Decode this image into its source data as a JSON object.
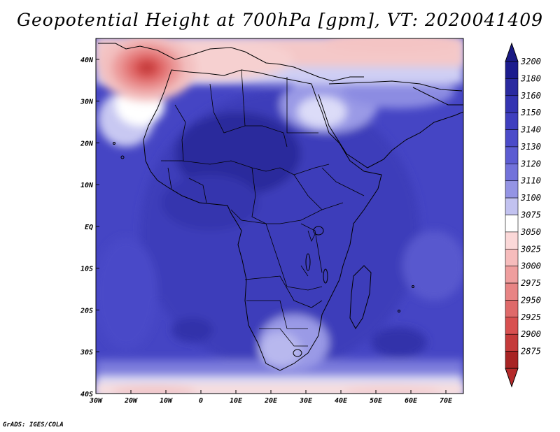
{
  "title": "Geopotential Height at 700hPa [gpm], VT: 2020041409",
  "credit": "GrADS: IGES/COLA",
  "map": {
    "lon_ticks": [
      "30W",
      "20W",
      "10W",
      "0",
      "10E",
      "20E",
      "30E",
      "40E",
      "50E",
      "60E",
      "70E"
    ],
    "lat_ticks": [
      "40N",
      "30N",
      "20N",
      "10N",
      "EQ",
      "10S",
      "20S",
      "30S",
      "40S"
    ],
    "lon_range": [
      -30,
      75
    ],
    "lat_range": [
      -40,
      45
    ]
  },
  "colorbar": {
    "levels": [
      "3200",
      "3180",
      "3160",
      "3150",
      "3140",
      "3130",
      "3120",
      "3110",
      "3100",
      "3075",
      "3050",
      "3025",
      "3000",
      "2975",
      "2950",
      "2925",
      "2900",
      "2875"
    ],
    "colors": [
      "#1c1c8e",
      "#2a2aa0",
      "#3434b2",
      "#3f3fbf",
      "#4b4bc9",
      "#5c5cd2",
      "#7272da",
      "#9494e4",
      "#c2c2f0",
      "#ffffff",
      "#fbd8d8",
      "#f6bcbc",
      "#ef9e9e",
      "#e88484",
      "#df6a6a",
      "#d85050",
      "#c53a3a",
      "#a82424"
    ],
    "top_color": "#1a1a84",
    "bottom_color": "#b52a2a"
  }
}
